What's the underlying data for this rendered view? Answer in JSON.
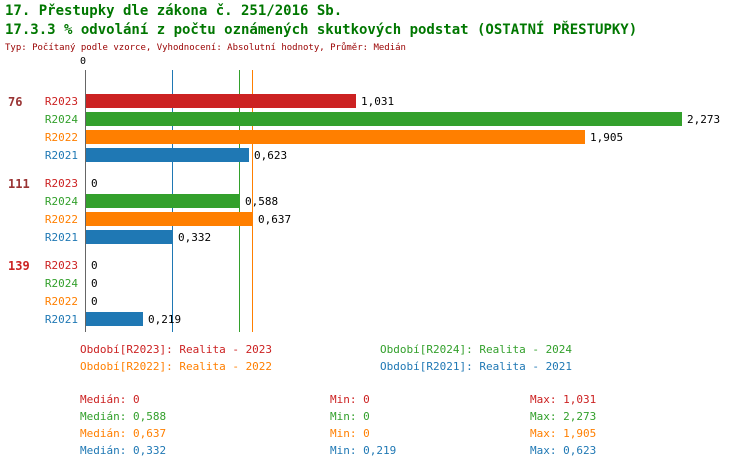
{
  "chart_data": {
    "type": "bar",
    "orientation": "horizontal",
    "title1": "17. Přestupky dle zákona č. 251/2016 Sb.",
    "title2": "17.3.3 % odvolání z počtu oznámených skutkových podstat (OSTATNÍ PŘESTUPKY)",
    "subtitle": "Typ: Počítaný podle vzorce, Vyhodnocení: Absolutní hodnoty, Průměr: Medián",
    "axis_zero_label": "0",
    "xlim": [
      0,
      2.54
    ],
    "grid": "vertical-median-lines",
    "series_order": [
      "R2023",
      "R2024",
      "R2022",
      "R2021"
    ],
    "series_colors": {
      "R2023": "#cc2222",
      "R2024": "#33a02c",
      "R2022": "#ff7f00",
      "R2021": "#1f78b4"
    },
    "groups": [
      {
        "label": "76",
        "label_color": "#993333",
        "values": {
          "R2023": 1.031,
          "R2024": 2.273,
          "R2022": 1.905,
          "R2021": 0.623
        },
        "value_labels": {
          "R2023": "1,031",
          "R2024": "2,273",
          "R2022": "1,905",
          "R2021": "0,623"
        }
      },
      {
        "label": "111",
        "label_color": "#993333",
        "values": {
          "R2023": 0,
          "R2024": 0.588,
          "R2022": 0.637,
          "R2021": 0.332
        },
        "value_labels": {
          "R2023": "0",
          "R2024": "0,588",
          "R2022": "0,637",
          "R2021": "0,332"
        }
      },
      {
        "label": "139",
        "label_color": "#cc2222",
        "values": {
          "R2023": 0,
          "R2024": 0,
          "R2022": 0,
          "R2021": 0.219
        },
        "value_labels": {
          "R2023": "0",
          "R2024": "0",
          "R2022": "0",
          "R2021": "0,219"
        }
      }
    ],
    "median_lines": [
      {
        "series": "R2023",
        "value": 0
      },
      {
        "series": "R2024",
        "value": 0.588
      },
      {
        "series": "R2022",
        "value": 0.637
      },
      {
        "series": "R2021",
        "value": 0.332
      }
    ]
  },
  "legend": [
    {
      "series": "R2023",
      "column": 0,
      "text": "Období[R2023]: Realita - 2023"
    },
    {
      "series": "R2024",
      "column": 1,
      "text": "Období[R2024]: Realita - 2024"
    },
    {
      "series": "R2022",
      "column": 0,
      "text": "Období[R2022]: Realita - 2022"
    },
    {
      "series": "R2021",
      "column": 1,
      "text": "Období[R2021]: Realita - 2021"
    }
  ],
  "stats": [
    {
      "series": "R2023",
      "median": "Medián: 0",
      "min": "Min: 0",
      "max": "Max: 1,031"
    },
    {
      "series": "R2024",
      "median": "Medián: 0,588",
      "min": "Min: 0",
      "max": "Max: 2,273"
    },
    {
      "series": "R2022",
      "median": "Medián: 0,637",
      "min": "Min: 0",
      "max": "Max: 1,905"
    },
    {
      "series": "R2021",
      "median": "Medián: 0,332",
      "min": "Min: 0,219",
      "max": "Max: 0,623"
    }
  ]
}
